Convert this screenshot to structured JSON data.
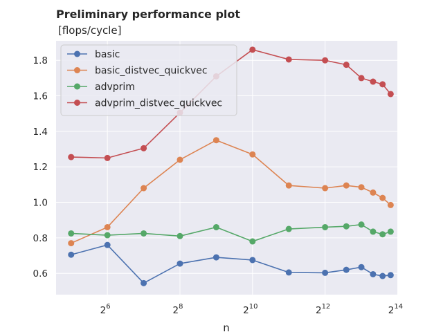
{
  "chart_data": {
    "type": "line",
    "title": "Preliminary performance plot",
    "subtitle": "[flops/cycle]",
    "xlabel": "n",
    "ylabel": "",
    "xscale": "log2",
    "x": [
      32,
      64,
      128,
      256,
      512,
      1024,
      2048,
      4096,
      6144,
      8192,
      10240,
      12288,
      14336
    ],
    "xlim": [
      24,
      16500
    ],
    "xticks": [
      {
        "base": "2",
        "exp": "6"
      },
      {
        "base": "2",
        "exp": "8"
      },
      {
        "base": "2",
        "exp": "10"
      },
      {
        "base": "2",
        "exp": "12"
      },
      {
        "base": "2",
        "exp": "14"
      }
    ],
    "ylim": [
      0.48,
      1.91
    ],
    "yticks": [
      "0.6",
      "0.8",
      "1.0",
      "1.2",
      "1.4",
      "1.6",
      "1.8"
    ],
    "grid": true,
    "legend_position": "top-left",
    "series": [
      {
        "name": "basic",
        "color": "#4c72b0",
        "values": [
          0.705,
          0.76,
          0.545,
          0.655,
          0.69,
          0.675,
          0.605,
          0.603,
          0.62,
          0.635,
          0.595,
          0.585,
          0.59
        ]
      },
      {
        "name": "basic_distvec_quickvec",
        "color": "#dd8452",
        "values": [
          0.77,
          0.86,
          1.08,
          1.24,
          1.35,
          1.27,
          1.095,
          1.08,
          1.095,
          1.085,
          1.055,
          1.025,
          0.985
        ]
      },
      {
        "name": "advprim",
        "color": "#55a868",
        "values": [
          0.825,
          0.815,
          0.825,
          0.81,
          0.86,
          0.78,
          0.85,
          0.86,
          0.865,
          0.875,
          0.835,
          0.82,
          0.835
        ]
      },
      {
        "name": "advprim_distvec_quickvec",
        "color": "#c44e52",
        "values": [
          1.255,
          1.25,
          1.305,
          1.505,
          1.71,
          1.86,
          1.805,
          1.8,
          1.775,
          1.7,
          1.68,
          1.665,
          1.61
        ]
      }
    ]
  }
}
